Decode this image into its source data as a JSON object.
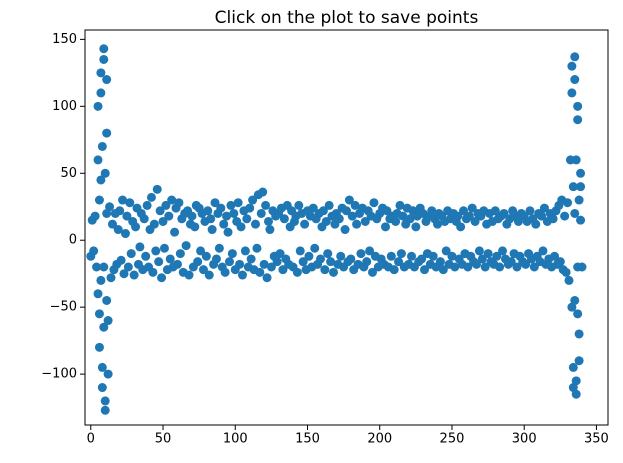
{
  "chart_data": {
    "type": "scatter",
    "title": "Click on the plot to save points",
    "color": "#1f77b4",
    "x": [
      0,
      1,
      2,
      3,
      4,
      5,
      6,
      7,
      8,
      9,
      10,
      11,
      12,
      13,
      14,
      15,
      16,
      17,
      18,
      19,
      20,
      21,
      22,
      23,
      24,
      25,
      26,
      27,
      28,
      29,
      30,
      31,
      32,
      33,
      34,
      35,
      36,
      37,
      38,
      39,
      40,
      41,
      42,
      43,
      44,
      45,
      46,
      47,
      48,
      49,
      50,
      51,
      52,
      53,
      54,
      55,
      56,
      57,
      58,
      59,
      60,
      61,
      62,
      63,
      64,
      65,
      66,
      67,
      68,
      69,
      70,
      71,
      72,
      73,
      74,
      75,
      76,
      77,
      78,
      79,
      80,
      81,
      82,
      83,
      84,
      85,
      86,
      87,
      88,
      89,
      90,
      91,
      92,
      93,
      94,
      95,
      96,
      97,
      98,
      99,
      100,
      101,
      102,
      103,
      104,
      105,
      106,
      107,
      108,
      109,
      110,
      111,
      112,
      113,
      114,
      115,
      116,
      117,
      118,
      119,
      120,
      121,
      122,
      123,
      124,
      125,
      126,
      127,
      128,
      129,
      130,
      131,
      132,
      133,
      134,
      135,
      136,
      137,
      138,
      139,
      140,
      141,
      142,
      143,
      144,
      145,
      146,
      147,
      148,
      149,
      150,
      151,
      152,
      153,
      154,
      155,
      156,
      157,
      158,
      159,
      160,
      161,
      162,
      163,
      164,
      165,
      166,
      167,
      168,
      169,
      170,
      171,
      172,
      173,
      174,
      175,
      176,
      177,
      178,
      179,
      180,
      181,
      182,
      183,
      184,
      185,
      186,
      187,
      188,
      189,
      190,
      191,
      192,
      193,
      194,
      195,
      196,
      197,
      198,
      199,
      200,
      201,
      202,
      203,
      204,
      205,
      206,
      207,
      208,
      209,
      210,
      211,
      212,
      213,
      214,
      215,
      216,
      217,
      218,
      219,
      220,
      221,
      222,
      223,
      224,
      225,
      226,
      227,
      228,
      229,
      230,
      231,
      232,
      233,
      234,
      235,
      236,
      237,
      238,
      239,
      240,
      241,
      242,
      243,
      244,
      245,
      246,
      247,
      248,
      249,
      250,
      251,
      252,
      253,
      254,
      255,
      256,
      257,
      258,
      259,
      260,
      261,
      262,
      263,
      264,
      265,
      266,
      267,
      268,
      269,
      270,
      271,
      272,
      273,
      274,
      275,
      276,
      277,
      278,
      279,
      280,
      281,
      282,
      283,
      284,
      285,
      286,
      287,
      288,
      289,
      290,
      291,
      292,
      293,
      294,
      295,
      296,
      297,
      298,
      299,
      300,
      301,
      302,
      303,
      304,
      305,
      306,
      307,
      308,
      309,
      310,
      311,
      312,
      313,
      314,
      315,
      316,
      317,
      318,
      319,
      320,
      321,
      322,
      323,
      324,
      325,
      326,
      327,
      328,
      329,
      330,
      331,
      332,
      333,
      334,
      335,
      336,
      337,
      338,
      339,
      340,
      5,
      6,
      7,
      8,
      9,
      10,
      11,
      12,
      6,
      7,
      8,
      9,
      10,
      11,
      5,
      7,
      9,
      11,
      333,
      334,
      335,
      336,
      337,
      338,
      339,
      334,
      335,
      336,
      337,
      338,
      333,
      335,
      337,
      339
    ],
    "values": [
      -12,
      15,
      -8,
      18,
      -20,
      60,
      -55,
      110,
      -95,
      143,
      -127,
      80,
      -60,
      25,
      -28,
      12,
      -22,
      20,
      -18,
      8,
      22,
      -15,
      30,
      -25,
      5,
      18,
      -20,
      28,
      -10,
      14,
      -26,
      10,
      24,
      -18,
      -5,
      20,
      -22,
      16,
      -12,
      26,
      -20,
      8,
      32,
      -24,
      12,
      -8,
      38,
      -16,
      22,
      -28,
      14,
      -6,
      26,
      -22,
      18,
      -14,
      30,
      -20,
      6,
      24,
      -18,
      28,
      -10,
      16,
      -24,
      20,
      -4,
      22,
      -26,
      12,
      18,
      -20,
      10,
      26,
      -16,
      24,
      -8,
      20,
      -22,
      14,
      -12,
      22,
      -26,
      16,
      8,
      -18,
      28,
      -14,
      20,
      -6,
      24,
      -20,
      12,
      -24,
      18,
      6,
      -16,
      26,
      -10,
      20,
      -22,
      14,
      28,
      -18,
      10,
      -26,
      22,
      -8,
      16,
      -20,
      24,
      -14,
      30,
      -22,
      12,
      -6,
      34,
      -24,
      20,
      36,
      -18,
      26,
      -28,
      14,
      8,
      -20,
      22,
      -12,
      18,
      -16,
      20,
      -10,
      24,
      -22,
      16,
      -14,
      26,
      -18,
      10,
      22,
      -20,
      14,
      18,
      -24,
      26,
      -8,
      20,
      -16,
      12,
      -22,
      22,
      -12,
      18,
      -20,
      24,
      -6,
      16,
      -18,
      20,
      -14,
      10,
      22,
      -22,
      14,
      -10,
      26,
      -16,
      18,
      -24,
      12,
      20,
      -18,
      16,
      -12,
      24,
      -20,
      8,
      22,
      -16,
      30,
      -14,
      18,
      -22,
      26,
      12,
      -18,
      20,
      -10,
      24,
      -20,
      14,
      -16,
      22,
      -8,
      18,
      -24,
      28,
      -12,
      16,
      -20,
      20,
      -14,
      24,
      -18,
      10,
      22,
      -20,
      16,
      -12,
      18,
      -22,
      14,
      20,
      -16,
      26,
      -10,
      18,
      -20,
      12,
      24,
      -18,
      16,
      -12,
      22,
      -20,
      10,
      18,
      -16,
      24,
      -14,
      20,
      -22,
      14,
      -10,
      18,
      -18,
      22,
      -12,
      16,
      -20,
      12,
      20,
      -16,
      18,
      -22,
      14,
      -8,
      22,
      -18,
      16,
      -12,
      20,
      -20,
      14,
      18,
      -14,
      10,
      -18,
      22,
      -10,
      16,
      -20,
      18,
      -12,
      24,
      -16,
      14,
      -18,
      20,
      -8,
      18,
      -14,
      22,
      -20,
      12,
      -10,
      20,
      -16,
      14,
      -18,
      22,
      -12,
      16,
      -20,
      18,
      -8,
      20,
      -14,
      12,
      -18,
      16,
      -16,
      22,
      -10,
      18,
      -20,
      14,
      -12,
      20,
      -16,
      18,
      -18,
      14,
      -10,
      22,
      -14,
      16,
      -20,
      12,
      -12,
      20,
      -16,
      18,
      -8,
      24,
      -18,
      14,
      -14,
      20,
      -20,
      16,
      -12,
      22,
      -18,
      26,
      -16,
      30,
      -22,
      18,
      -24,
      28,
      -30,
      60,
      130,
      -110,
      137,
      -115,
      90,
      -70,
      40,
      -20,
      100,
      -80,
      125,
      -110,
      135,
      -120,
      120,
      -100,
      30,
      -30,
      70,
      -65,
      50,
      -45,
      -40,
      45,
      -20,
      20,
      110,
      -95,
      120,
      -105,
      100,
      -90,
      50,
      40,
      -45,
      60,
      -55,
      30,
      -50,
      20,
      -20,
      15
    ],
    "xlim": [
      -4,
      358
    ],
    "ylim": [
      -138,
      157
    ],
    "xticks": [
      0,
      50,
      100,
      150,
      200,
      250,
      300,
      350
    ],
    "yticks": [
      {
        "value": -100,
        "label": "−100"
      },
      {
        "value": -50,
        "label": "−50"
      },
      0,
      50,
      100,
      150
    ]
  }
}
